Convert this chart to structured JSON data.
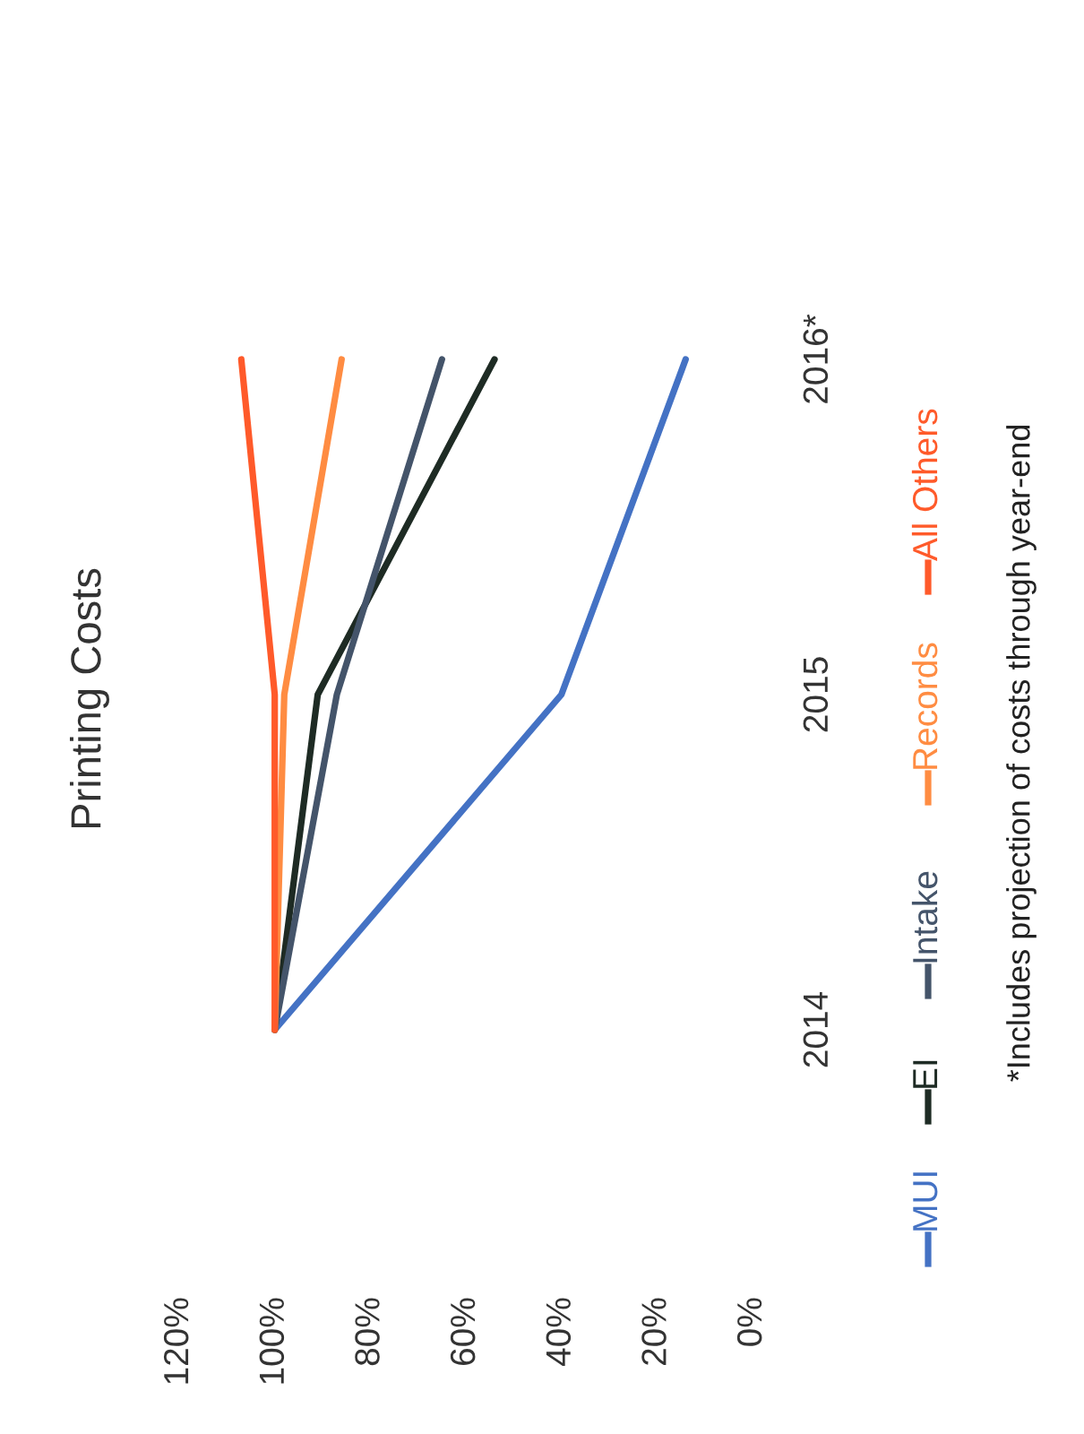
{
  "chart_data": {
    "type": "line",
    "title": "Printing Costs",
    "categories": [
      "2016*",
      "2015",
      "2014"
    ],
    "series": [
      {
        "name": "MUI",
        "color": "#4472c4",
        "values": [
          14,
          40,
          100
        ]
      },
      {
        "name": "EI",
        "color": "#1e2b24",
        "values": [
          54,
          91,
          100
        ]
      },
      {
        "name": "Intake",
        "color": "#44546a",
        "values": [
          65,
          87,
          100
        ]
      },
      {
        "name": "Records",
        "color": "#ff8c42",
        "values": [
          86,
          98,
          100
        ]
      },
      {
        "name": "All Others",
        "color": "#ff5a2a",
        "values": [
          107,
          100,
          100
        ]
      }
    ],
    "orientation": "horizontal",
    "xlim": [
      120,
      0
    ],
    "xticks": [
      {
        "value": 0,
        "label": "0%"
      },
      {
        "value": 20,
        "label": "20%"
      },
      {
        "value": 40,
        "label": "40%"
      },
      {
        "value": 60,
        "label": "60%"
      },
      {
        "value": 80,
        "label": "80%"
      },
      {
        "value": 100,
        "label": "100%"
      },
      {
        "value": 120,
        "label": "120%"
      }
    ],
    "grid": false,
    "legend": "bottom",
    "marker": "none",
    "line_style": "solid",
    "annotations": [
      "*Includes projection of costs through year-end"
    ]
  }
}
